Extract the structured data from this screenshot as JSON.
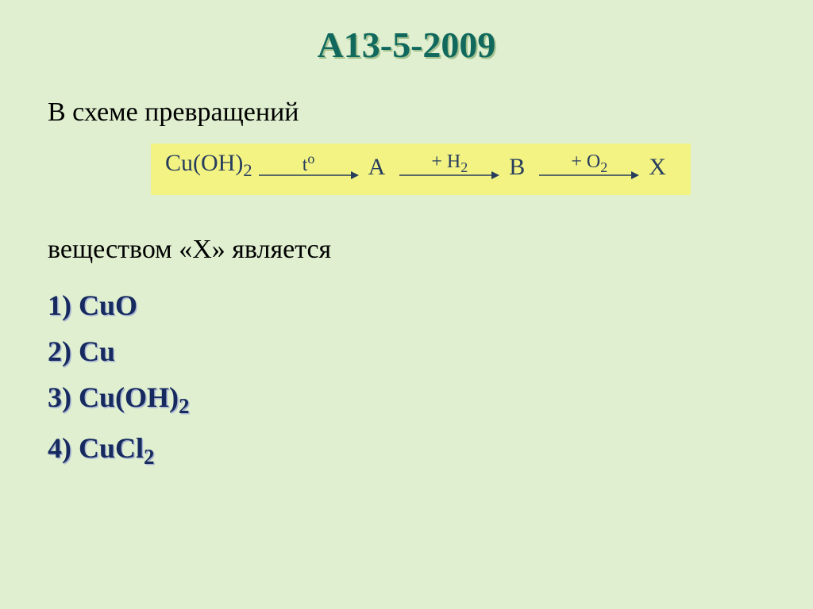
{
  "title": {
    "text": "А13-5-2009",
    "color": "#11695e",
    "shadow_color": "#a5c290",
    "font_size": 46
  },
  "intro_text": "В схеме превращений",
  "scheme": {
    "background_color": "#f3f383",
    "text_color": "#273d5e",
    "font_size": 30,
    "start": {
      "text": "Cu(OH)",
      "sub": "2"
    },
    "steps": [
      {
        "label_html": "<span>t</span><span class=\"sup\">о</span>",
        "target": "A"
      },
      {
        "label_html": "+ H<span class=\"sub\">2</span>",
        "target": "B"
      },
      {
        "label_html": "+ O<span class=\"sub\">2</span>",
        "target": "X"
      }
    ],
    "arrow": {
      "width": 130,
      "height": 14,
      "color": "#273d5e"
    }
  },
  "below_text": "веществом «Х» является",
  "options": {
    "color": "#162a60",
    "shadow_color": "#a9b5d2",
    "font_size": 36,
    "items": [
      {
        "num": "1)",
        "formula_html": "CuO"
      },
      {
        "num": "2)",
        "formula_html": "Cu"
      },
      {
        "num": "3)",
        "formula_html": "Cu(OH)<span class=\"sub\">2</span>"
      },
      {
        "num": "4)",
        "formula_html": "CuCl<span class=\"sub\">2</span>"
      }
    ]
  },
  "body_text_color": "#000000",
  "body_font_size": 34,
  "background_color": "#dfefcf"
}
